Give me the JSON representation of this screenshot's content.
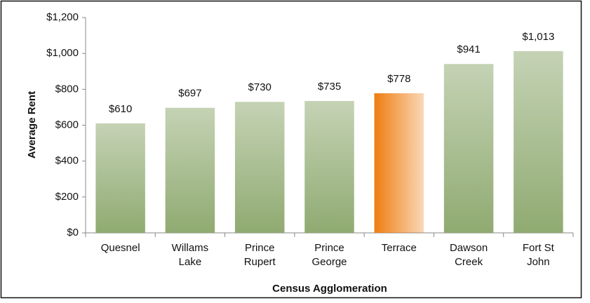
{
  "chart_data": {
    "type": "bar",
    "x_label": "Census Agglomeration",
    "y_label": "Average Rent",
    "categories": [
      [
        "Quesnel"
      ],
      [
        "Willams",
        "Lake"
      ],
      [
        "Prince",
        "Rupert"
      ],
      [
        "Prince",
        "George"
      ],
      [
        "Terrace"
      ],
      [
        "Dawson",
        "Creek"
      ],
      [
        "Fort St",
        "John"
      ]
    ],
    "values": [
      610,
      697,
      730,
      735,
      778,
      941,
      1013
    ],
    "value_labels": [
      "$610",
      "$697",
      "$730",
      "$735",
      "$778",
      "$941",
      "$1,013"
    ],
    "colors": [
      "#8aa66a",
      "#8aa66a",
      "#8aa66a",
      "#8aa66a",
      "#ee7d10",
      "#8aa66a",
      "#8aa66a"
    ],
    "ylim": [
      0,
      1200
    ],
    "yticks": [
      {
        "value": 0,
        "label": "$0"
      },
      {
        "value": 200,
        "label": "$200"
      },
      {
        "value": 400,
        "label": "$400"
      },
      {
        "value": 600,
        "label": "$600"
      },
      {
        "value": 800,
        "label": "$800"
      },
      {
        "value": 1000,
        "label": "$1,000"
      },
      {
        "value": 1200,
        "label": "$1,200"
      }
    ],
    "grid": false
  }
}
